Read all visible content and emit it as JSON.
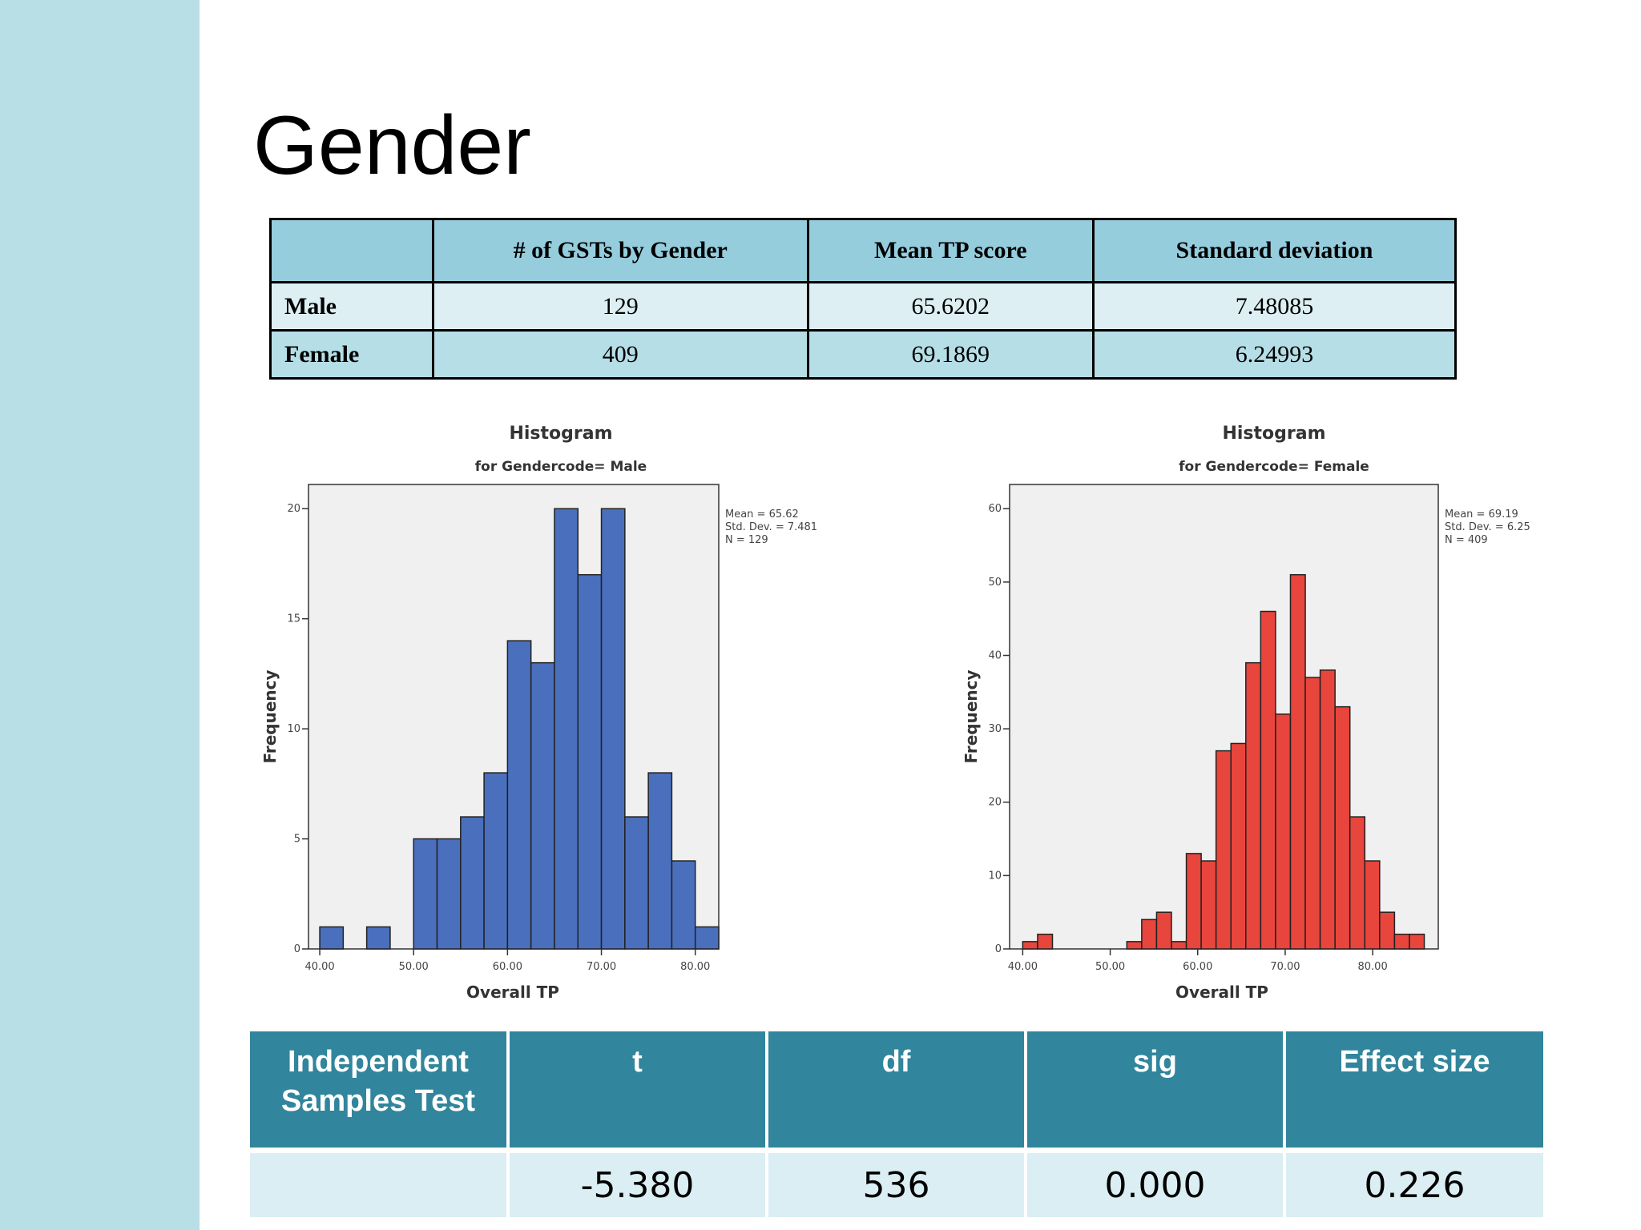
{
  "slide": {
    "title": "Gender",
    "colors": {
      "side_band": "#b8dfe6",
      "table_header": "#95cddd",
      "test_header": "#31859c"
    }
  },
  "stats_table": {
    "headers": [
      "",
      "# of GSTs by Gender",
      "Mean TP score",
      "Standard deviation"
    ],
    "rows": [
      {
        "label": "Male",
        "count": "129",
        "mean": "65.6202",
        "sd": "7.48085"
      },
      {
        "label": "Female",
        "count": "409",
        "mean": "69.1869",
        "sd": "6.24993"
      }
    ]
  },
  "chart_data": [
    {
      "type": "bar",
      "title": "Histogram",
      "subtitle": "for Gendercode= Male",
      "xlabel": "Overall TP",
      "ylabel": "Frequency",
      "color": "#4a6fbd",
      "xlim": [
        38.8,
        82.5
      ],
      "ylim": [
        0,
        21.1
      ],
      "x_ticks": [
        "40.00",
        "50.00",
        "60.00",
        "70.00",
        "80.00"
      ],
      "y_ticks": [
        "0",
        "5",
        "10",
        "15",
        "20"
      ],
      "bin_width": 2.5,
      "bins": [
        {
          "start": 40.0,
          "value": 1
        },
        {
          "start": 42.5,
          "value": 0
        },
        {
          "start": 45.0,
          "value": 1
        },
        {
          "start": 47.5,
          "value": 0
        },
        {
          "start": 50.0,
          "value": 5
        },
        {
          "start": 52.5,
          "value": 5
        },
        {
          "start": 55.0,
          "value": 6
        },
        {
          "start": 57.5,
          "value": 8
        },
        {
          "start": 60.0,
          "value": 14
        },
        {
          "start": 62.5,
          "value": 13
        },
        {
          "start": 65.0,
          "value": 20
        },
        {
          "start": 67.5,
          "value": 17
        },
        {
          "start": 70.0,
          "value": 20
        },
        {
          "start": 72.5,
          "value": 6
        },
        {
          "start": 75.0,
          "value": 8
        },
        {
          "start": 77.5,
          "value": 4
        },
        {
          "start": 80.0,
          "value": 1
        }
      ],
      "stats_text": [
        "Mean = 65.62",
        "Std. Dev. = 7.481",
        "N = 129"
      ],
      "grid": false
    },
    {
      "type": "bar",
      "title": "Histogram",
      "subtitle": "for Gendercode= Female",
      "xlabel": "Overall TP",
      "ylabel": "Frequency",
      "color": "#e8453c",
      "xlim": [
        38.5,
        87.5
      ],
      "ylim": [
        0,
        63.3
      ],
      "x_ticks": [
        "40.00",
        "50.00",
        "60.00",
        "70.00",
        "80.00"
      ],
      "y_ticks": [
        "0",
        "10",
        "20",
        "30",
        "40",
        "50",
        "60"
      ],
      "bin_width": 1.7,
      "bins": [
        {
          "start": 40.0,
          "value": 1
        },
        {
          "start": 41.7,
          "value": 2
        },
        {
          "start": 43.4,
          "value": 0
        },
        {
          "start": 45.1,
          "value": 0
        },
        {
          "start": 46.8,
          "value": 0
        },
        {
          "start": 48.5,
          "value": 0
        },
        {
          "start": 50.2,
          "value": 0
        },
        {
          "start": 51.9,
          "value": 1
        },
        {
          "start": 53.6,
          "value": 4
        },
        {
          "start": 55.3,
          "value": 5
        },
        {
          "start": 57.0,
          "value": 1
        },
        {
          "start": 58.7,
          "value": 13
        },
        {
          "start": 60.4,
          "value": 12
        },
        {
          "start": 62.1,
          "value": 27
        },
        {
          "start": 63.8,
          "value": 28
        },
        {
          "start": 65.5,
          "value": 39
        },
        {
          "start": 67.2,
          "value": 46
        },
        {
          "start": 68.9,
          "value": 32
        },
        {
          "start": 70.6,
          "value": 51
        },
        {
          "start": 72.3,
          "value": 37
        },
        {
          "start": 74.0,
          "value": 38
        },
        {
          "start": 75.7,
          "value": 33
        },
        {
          "start": 77.4,
          "value": 18
        },
        {
          "start": 79.1,
          "value": 12
        },
        {
          "start": 80.8,
          "value": 5
        },
        {
          "start": 82.5,
          "value": 2
        },
        {
          "start": 84.2,
          "value": 2
        }
      ],
      "stats_text": [
        "Mean = 69.19",
        "Std. Dev. = 6.25",
        "N = 409"
      ],
      "grid": false
    }
  ],
  "test_table": {
    "headers": [
      "Independent Samples Test",
      "t",
      "df",
      "sig",
      "Effect size"
    ],
    "values": [
      "",
      "-5.380",
      "536",
      "0.000",
      "0.226"
    ]
  }
}
